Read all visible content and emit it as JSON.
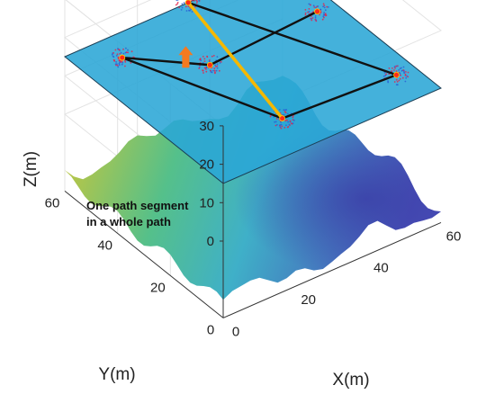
{
  "chart_data": {
    "type": "3d-surface-with-paths",
    "title": "",
    "xlabel": "X(m)",
    "ylabel": "Y(m)",
    "zlabel": "Z(m)",
    "xlim": [
      0,
      60
    ],
    "ylim": [
      0,
      60
    ],
    "zlim": [
      -20,
      30
    ],
    "x_ticks": [
      "0",
      "20",
      "40",
      "60"
    ],
    "y_ticks": [
      "0",
      "20",
      "40",
      "60"
    ],
    "z_ticks": [
      "0",
      "10",
      "20",
      "30"
    ],
    "grid": true,
    "plane_z": 15,
    "colors": {
      "plane": "#2aa6d6",
      "path": "#111111",
      "highlight_segment": "#f5b800",
      "arrow": "#f47a20",
      "waypoint": "#ff2a1a",
      "particles_red": "#e6224a",
      "particles_blue": "#2a5fd6",
      "terrain_low": "#3b3fa8",
      "terrain_mid": "#3fb0c8",
      "terrain_high": "#d8c830"
    },
    "path_waypoints": [
      {
        "x": 55,
        "y": 40,
        "z": 15
      },
      {
        "x": 24,
        "y": 38,
        "z": 15
      },
      {
        "x": 10,
        "y": 52,
        "z": 15
      },
      {
        "x": 25,
        "y": 12,
        "z": 15
      },
      {
        "x": 55,
        "y": 10,
        "z": 15
      },
      {
        "x": 34,
        "y": 60,
        "z": 15
      }
    ],
    "highlight_segment": {
      "from": 3,
      "to": 5
    },
    "annotation": [
      "One path segment",
      "in a whole path"
    ]
  }
}
